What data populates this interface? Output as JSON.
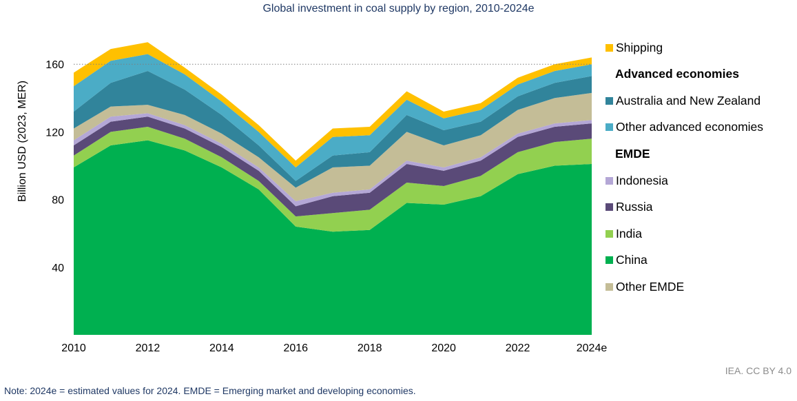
{
  "chart_data": {
    "type": "area",
    "stacked": true,
    "title": "Global investment in coal supply by region, 2010-2024e",
    "ylabel": "Billion USD (2023, MER)",
    "xlabel": "",
    "x": [
      "2010",
      "2011",
      "2012",
      "2013",
      "2014",
      "2015",
      "2016",
      "2017",
      "2018",
      "2019",
      "2020",
      "2021",
      "2022",
      "2023",
      "2024e"
    ],
    "x_tick_labels": [
      "2010",
      "2012",
      "2014",
      "2016",
      "2018",
      "2020",
      "2022",
      "2024e"
    ],
    "y_ticks": [
      "40",
      "80",
      "120",
      "160"
    ],
    "ylim": [
      0,
      175
    ],
    "gridlines": [
      160
    ],
    "series": [
      {
        "name": "China",
        "color": "#00b050",
        "values": [
          99,
          112,
          115,
          109,
          99,
          86,
          64,
          61,
          62,
          78,
          77,
          82,
          95,
          100,
          101
        ]
      },
      {
        "name": "India",
        "color": "#92d050",
        "values": [
          7,
          8,
          8,
          7,
          6,
          5,
          6,
          11,
          12,
          12,
          11,
          12,
          13,
          14,
          15
        ]
      },
      {
        "name": "Russia",
        "color": "#5a4a78",
        "values": [
          6,
          6,
          6,
          6,
          6,
          6,
          6,
          10,
          10,
          11,
          9,
          9,
          9,
          9,
          9
        ]
      },
      {
        "name": "Indonesia",
        "color": "#b4a7d6",
        "values": [
          3,
          3,
          2,
          2,
          2,
          2,
          3,
          2,
          2,
          2,
          2,
          2,
          2,
          2,
          2
        ]
      },
      {
        "name": "Other EMDE",
        "color": "#c4bd97",
        "values": [
          7,
          6,
          5,
          6,
          6,
          6,
          8,
          15,
          14,
          17,
          13,
          13,
          14,
          15,
          16
        ]
      },
      {
        "name": "Australia and New Zealand",
        "color": "#31849b",
        "values": [
          10,
          14,
          20,
          15,
          11,
          7,
          4,
          7,
          8,
          10,
          9,
          8,
          8,
          9,
          10
        ]
      },
      {
        "name": "Other advanced economies",
        "color": "#4bacc6",
        "values": [
          15,
          13,
          10,
          9,
          8,
          8,
          8,
          11,
          10,
          9,
          7,
          7,
          7,
          7,
          7
        ]
      },
      {
        "name": "Shipping",
        "color": "#ffc000",
        "values": [
          8,
          7,
          7,
          4,
          4,
          4,
          4,
          5,
          5,
          5,
          4,
          4,
          4,
          4,
          4
        ]
      }
    ]
  },
  "legend": {
    "items": [
      {
        "kind": "item",
        "label": "Shipping",
        "color": "#ffc000"
      },
      {
        "kind": "header",
        "label": "Advanced economies"
      },
      {
        "kind": "item",
        "label": "Australia and New Zealand",
        "color": "#31849b"
      },
      {
        "kind": "item",
        "label": "Other advanced economies",
        "color": "#4bacc6"
      },
      {
        "kind": "header",
        "label": "EMDE"
      },
      {
        "kind": "item",
        "label": "Indonesia",
        "color": "#b4a7d6"
      },
      {
        "kind": "item",
        "label": "Russia",
        "color": "#5a4a78"
      },
      {
        "kind": "item",
        "label": "India",
        "color": "#92d050"
      },
      {
        "kind": "item",
        "label": "China",
        "color": "#00b050"
      },
      {
        "kind": "item",
        "label": "Other EMDE",
        "color": "#c4bd97"
      }
    ]
  },
  "credit": "IEA. CC BY 4.0",
  "note": "Note: 2024e = estimated values for 2024. EMDE = Emerging market and developing economies."
}
